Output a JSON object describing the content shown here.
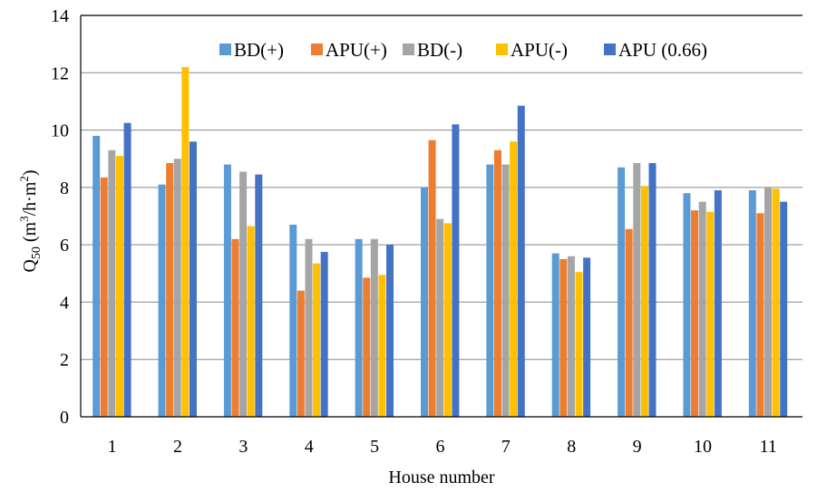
{
  "chart_data": {
    "type": "bar",
    "xlabel": "House number",
    "ylabel_main": "Q",
    "ylabel_sub": "50",
    "ylabel_unit_open": " (m",
    "ylabel_unit_sup": "3",
    "ylabel_unit_close": "/h·m",
    "ylabel_unit_sup2": "2",
    "ylabel_unit_end": ")",
    "ylim": [
      0,
      14
    ],
    "yticks": [
      "0",
      "2",
      "4",
      "6",
      "8",
      "10",
      "12",
      "14"
    ],
    "grid": true,
    "legend_position": "top-right",
    "categories": [
      "1",
      "2",
      "3",
      "4",
      "5",
      "6",
      "7",
      "8",
      "9",
      "10",
      "11"
    ],
    "series": [
      {
        "name": "BD(+)",
        "color": "#5B9BD5",
        "values": [
          9.8,
          8.1,
          8.8,
          6.7,
          6.2,
          8.0,
          8.8,
          5.7,
          8.7,
          7.8,
          7.9
        ]
      },
      {
        "name": "APU(+)",
        "color": "#ED7D31",
        "values": [
          8.35,
          8.85,
          6.2,
          4.4,
          4.85,
          9.65,
          9.3,
          5.5,
          6.55,
          7.2,
          7.1
        ]
      },
      {
        "name": "BD(-)",
        "color": "#A5A5A5",
        "values": [
          9.3,
          9.0,
          8.55,
          6.2,
          6.2,
          6.9,
          8.8,
          5.6,
          8.85,
          7.5,
          8.0
        ]
      },
      {
        "name": "APU(-)",
        "color": "#FFC000",
        "values": [
          9.1,
          12.2,
          6.65,
          5.35,
          4.95,
          6.75,
          9.6,
          5.05,
          8.05,
          7.15,
          7.95
        ]
      },
      {
        "name": "APU (0.66)",
        "color": "#4472C4",
        "values": [
          10.25,
          9.6,
          8.45,
          5.75,
          6.0,
          10.2,
          10.85,
          5.55,
          8.85,
          7.9,
          7.5
        ]
      }
    ]
  }
}
